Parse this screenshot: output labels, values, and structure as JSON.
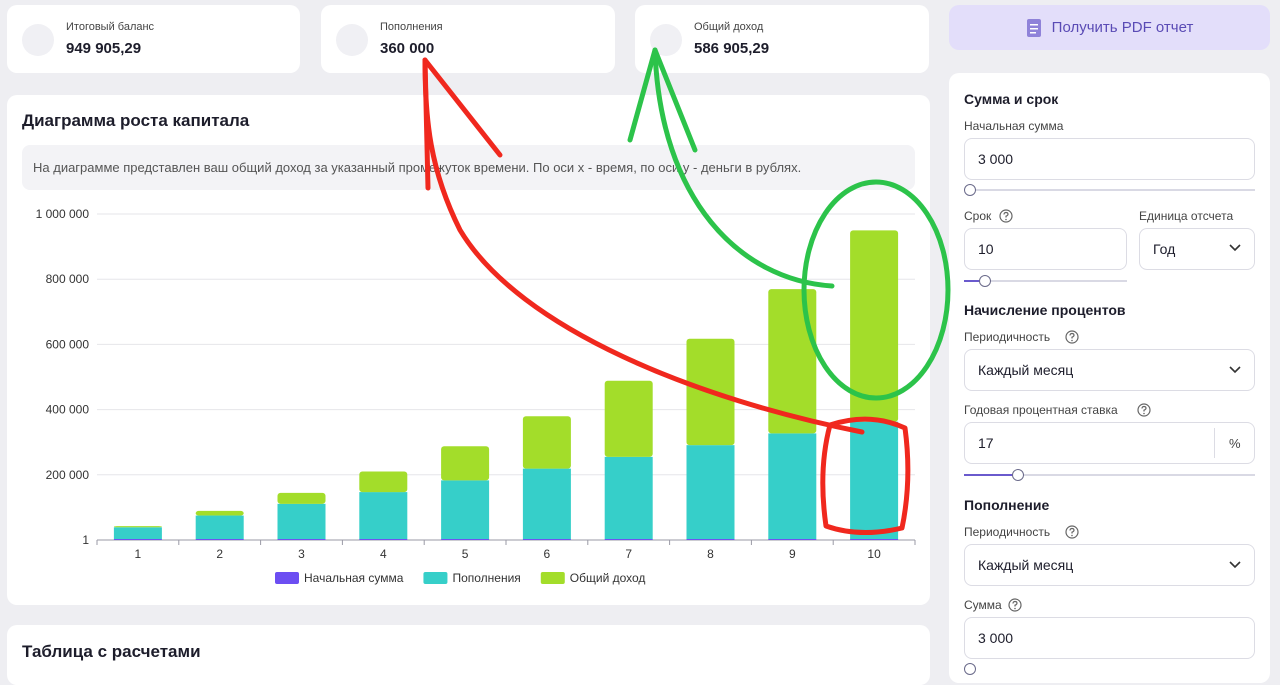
{
  "stats": [
    {
      "label": "Итоговый баланс",
      "value": "949 905,29"
    },
    {
      "label": "Пополнения",
      "value": "360 000"
    },
    {
      "label": "Общий доход",
      "value": "586 905,29"
    }
  ],
  "pdf_button": "Получить PDF отчет",
  "chart_data": {
    "type": "bar",
    "stacked": true,
    "title": "Диаграмма роста капитала",
    "description": "На диаграмме представлен ваш общий доход за указанный промежуток времени. По оси х - время, по оси у - деньги в рублях.",
    "categories": [
      "1",
      "2",
      "3",
      "4",
      "5",
      "6",
      "7",
      "8",
      "9",
      "10"
    ],
    "series": [
      {
        "name": "Начальная сумма",
        "color": "#6c4ef2",
        "values": [
          3000,
          3000,
          3000,
          3000,
          3000,
          3000,
          3000,
          3000,
          3000,
          3000
        ]
      },
      {
        "name": "Пополнения",
        "color": "#36cfc9",
        "values": [
          36000,
          72000,
          108000,
          144000,
          180000,
          216000,
          252000,
          288000,
          324000,
          360000
        ]
      },
      {
        "name": "Общий доход",
        "color": "#a3dd2a",
        "values": [
          3490,
          14250,
          33600,
          63150,
          104760,
          160620,
          233370,
          326160,
          442620,
          586905
        ]
      }
    ],
    "ylim": [
      1,
      1000000
    ],
    "yticks": [
      1,
      {
        "value": 200000,
        "label": "200 000"
      },
      {
        "value": 400000,
        "label": "400 000"
      },
      {
        "value": 600000,
        "label": "600 000"
      },
      {
        "value": 800000,
        "label": "800 000"
      },
      {
        "value": 1000000,
        "label": "1 000 000"
      }
    ],
    "grid": true,
    "legend": "bottom"
  },
  "table_title": "Таблица с расчетами",
  "form": {
    "sections": [
      {
        "title": "Сумма и срок",
        "fields": [
          {
            "label": "Начальная сумма",
            "value": "3 000"
          },
          {
            "label": "Срок",
            "value": "10"
          },
          {
            "label": "Единица отсчета",
            "value": "Год"
          }
        ]
      },
      {
        "title": "Начисление процентов",
        "fields": [
          {
            "label": "Периодичность",
            "value": "Каждый месяц"
          },
          {
            "label": "Годовая процентная ставка",
            "value": "17",
            "unit": "%"
          }
        ]
      },
      {
        "title": "Пополнение",
        "fields": [
          {
            "label": "Периодичность",
            "value": "Каждый месяц"
          },
          {
            "label": "Сумма",
            "value": "3 000"
          }
        ]
      }
    ]
  }
}
